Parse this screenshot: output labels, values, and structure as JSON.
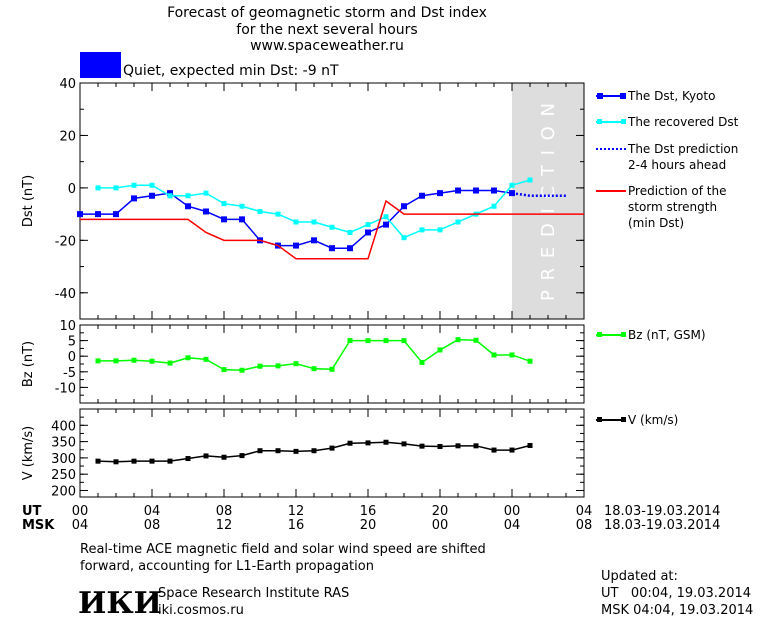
{
  "header": {
    "title_lines": [
      "Forecast of geomagnetic storm and Dst index",
      "for the next several hours",
      "www.spaceweather.ru"
    ],
    "status_text": "Quiet, expected min Dst: -9 nT",
    "status_color": "#0000ff"
  },
  "prediction_label": "PREDICTION",
  "time_axis": {
    "ut_label": "UT",
    "msk_label": "MSK",
    "ut_ticks": [
      "00",
      "04",
      "08",
      "12",
      "16",
      "20",
      "00",
      "04"
    ],
    "msk_ticks": [
      "04",
      "08",
      "12",
      "16",
      "20",
      "00",
      "04",
      "08"
    ],
    "date_range": "18.03-19.03.2014",
    "hours": [
      0,
      4,
      8,
      12,
      16,
      20,
      24,
      28
    ]
  },
  "chart_data": [
    {
      "type": "line",
      "ylabel": "Dst (nT)",
      "ylim": [
        -50,
        40
      ],
      "xlim_hours": [
        0,
        28
      ],
      "yticks": [
        "40",
        "20",
        "0",
        "-20",
        "-40"
      ],
      "ytick_values": [
        40,
        20,
        0,
        -20,
        -40
      ],
      "prediction_region_hours": [
        24,
        28
      ],
      "series": [
        {
          "name": "The Dst, Kyoto",
          "color": "#0000ff",
          "style": "line-square",
          "x": [
            0,
            1,
            2,
            3,
            4,
            5,
            6,
            7,
            8,
            9,
            10,
            11,
            12,
            13,
            14,
            15,
            16,
            17,
            18,
            19,
            20,
            21,
            22,
            23,
            24
          ],
          "y": [
            -10,
            -10,
            -10,
            -4,
            -3,
            -2,
            -7,
            -9,
            -12,
            -12,
            -20,
            -22,
            -22,
            -20,
            -23,
            -23,
            -17,
            -14,
            -7,
            -3,
            -2,
            -1,
            -1,
            -1,
            -2
          ]
        },
        {
          "name": "The recovered Dst",
          "color": "#00ffff",
          "style": "line-square",
          "x": [
            1,
            2,
            3,
            4,
            5,
            6,
            7,
            8,
            9,
            10,
            11,
            12,
            13,
            14,
            15,
            16,
            17,
            18,
            19,
            20,
            21,
            22,
            23,
            24,
            25
          ],
          "y": [
            0,
            0,
            1,
            1,
            -3,
            -3,
            -2,
            -6,
            -7,
            -9,
            -10,
            -13,
            -13,
            -15,
            -17,
            -14,
            -11,
            -19,
            -16,
            -16,
            -13,
            -10,
            -7,
            1,
            3
          ]
        },
        {
          "name": "The Dst prediction\n2-4 hours ahead",
          "color": "#0000ff",
          "style": "dotted",
          "x": [
            24,
            25,
            26,
            27
          ],
          "y": [
            -2,
            -3,
            -3,
            -3
          ]
        },
        {
          "name": "Prediction of the\nstorm strength\n(min Dst)",
          "color": "#ff0000",
          "style": "step",
          "x": [
            0,
            6,
            7,
            8,
            10,
            11,
            12,
            16,
            17,
            18,
            28
          ],
          "y": [
            -12,
            -12,
            -17,
            -20,
            -20,
            -22,
            -27,
            -27,
            -5,
            -10,
            -10
          ]
        }
      ],
      "legend_placement": "right"
    },
    {
      "type": "line",
      "ylabel": "Bz (nT)",
      "ylim": [
        -15,
        10
      ],
      "xlim_hours": [
        0,
        28
      ],
      "yticks": [
        "10",
        "5",
        "0",
        "-5",
        "-10"
      ],
      "ytick_values": [
        10,
        5,
        0,
        -5,
        -10
      ],
      "series": [
        {
          "name": "Bz (nT, GSM)",
          "color": "#00ff00",
          "style": "line-square",
          "x": [
            1,
            2,
            3,
            4,
            5,
            6,
            7,
            8,
            9,
            10,
            11,
            12,
            13,
            14,
            15,
            16,
            17,
            18,
            19,
            20,
            21,
            22,
            23,
            24,
            25
          ],
          "y": [
            -1.5,
            -1.5,
            -1.3,
            -1.6,
            -2.2,
            -0.5,
            -1,
            -4.3,
            -4.5,
            -3.2,
            -3.1,
            -2.4,
            -4,
            -4.2,
            5,
            5,
            5,
            5,
            -2,
            2,
            5.3,
            5.1,
            0.4,
            0.4,
            -1.6
          ]
        }
      ],
      "legend_placement": "right"
    },
    {
      "type": "line",
      "ylabel": "V (km/s)",
      "ylim": [
        180,
        450
      ],
      "xlim_hours": [
        0,
        28
      ],
      "yticks": [
        "400",
        "350",
        "300",
        "250",
        "200"
      ],
      "ytick_values": [
        400,
        350,
        300,
        250,
        200
      ],
      "series": [
        {
          "name": "V (km/s)",
          "color": "#000000",
          "style": "line-square",
          "x": [
            1,
            2,
            3,
            4,
            5,
            6,
            7,
            8,
            9,
            10,
            11,
            12,
            13,
            14,
            15,
            16,
            17,
            18,
            19,
            20,
            21,
            22,
            23,
            24,
            25
          ],
          "y": [
            290,
            288,
            290,
            290,
            290,
            298,
            306,
            302,
            307,
            322,
            322,
            320,
            322,
            330,
            345,
            346,
            348,
            343,
            336,
            335,
            337,
            337,
            324,
            324,
            338
          ]
        }
      ],
      "legend_placement": "right"
    }
  ],
  "footer": {
    "note_lines": [
      "Real-time ACE magnetic field and solar wind speed are shifted",
      "forward, accounting for L1-Earth propagation"
    ],
    "logo_text": "ИКИ",
    "institute_name": "Space Research Institute RAS",
    "institute_site": "iki.cosmos.ru",
    "updated_label": "Updated at:",
    "updated_ut": "UT   00:04, 19.03.2014",
    "updated_msk": "MSK 04:04, 19.03.2014"
  }
}
